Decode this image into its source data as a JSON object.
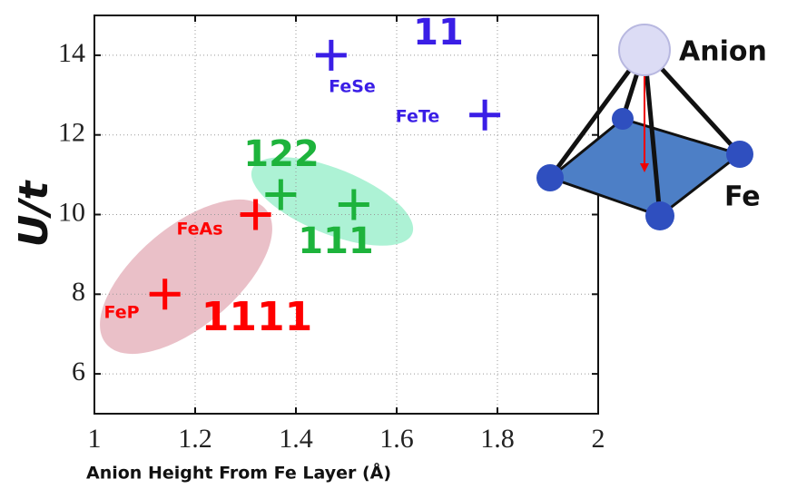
{
  "chart_data": {
    "type": "scatter",
    "xlabel": "Anion Height From Fe Layer (Å)",
    "ylabel": "U/t",
    "xlim": [
      1,
      2
    ],
    "xticks": [
      1,
      1.2,
      1.4,
      1.6,
      1.8,
      2
    ],
    "ylim": [
      5,
      15
    ],
    "yticks": [
      6,
      8,
      10,
      12,
      14
    ],
    "grid": true,
    "series": [
      {
        "name": "1111",
        "color": "#ff0000",
        "x": [
          1.14,
          1.32
        ],
        "values": [
          8.0,
          10.0
        ],
        "point_labels": [
          "FeP",
          "FeAs"
        ]
      },
      {
        "name": "122",
        "color": "#1db33c",
        "x": [
          1.37
        ],
        "values": [
          10.5
        ]
      },
      {
        "name": "111",
        "color": "#1db33c",
        "x": [
          1.515
        ],
        "values": [
          10.25
        ]
      },
      {
        "name": "11",
        "color": "#3a1ee6",
        "x": [
          1.47,
          1.775
        ],
        "values": [
          14.0,
          12.5
        ],
        "point_labels": [
          "FeSe",
          "FeTe"
        ]
      }
    ],
    "annotations": [
      "Anion",
      "Fe"
    ]
  }
}
